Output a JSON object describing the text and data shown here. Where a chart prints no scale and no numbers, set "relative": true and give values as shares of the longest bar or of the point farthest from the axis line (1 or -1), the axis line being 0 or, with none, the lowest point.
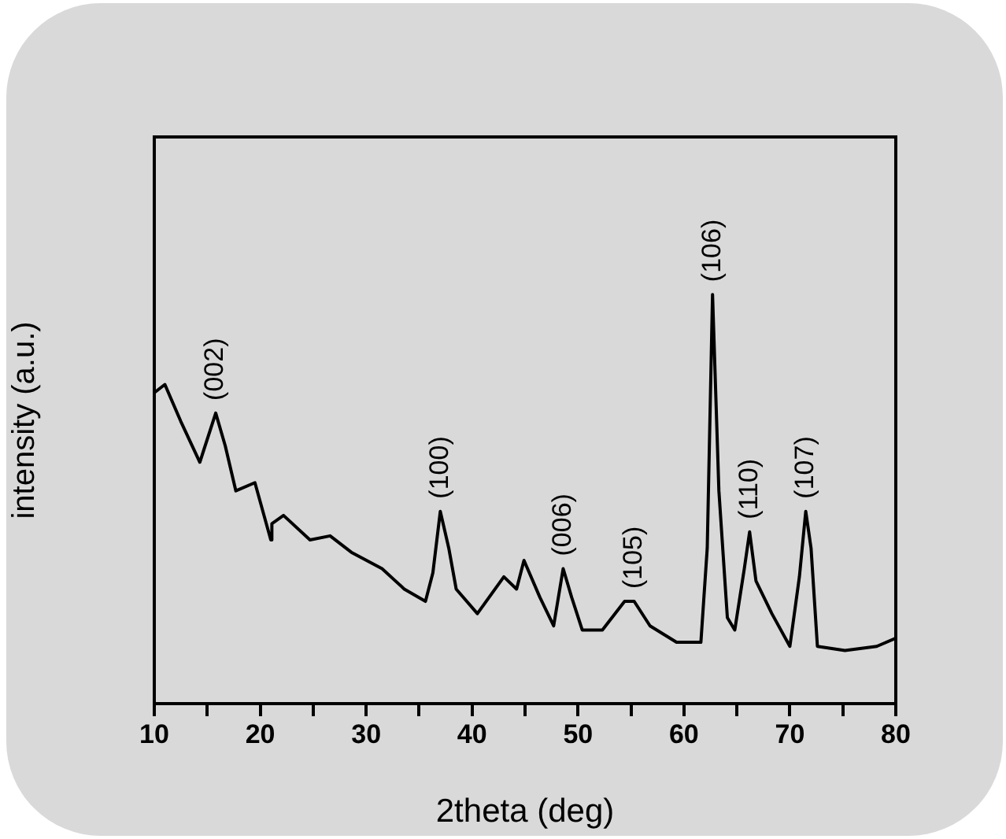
{
  "chart_data": {
    "type": "line",
    "relative": true,
    "xlabel": "2theta (deg)",
    "ylabel": "intensity (a.u.)",
    "color": "#000000",
    "marker": "none",
    "line_style": "solid",
    "grid": false,
    "legend": false,
    "tick_labels": "x",
    "xlim": [
      10,
      80
    ],
    "xticks": [
      10,
      {
        "value": 15,
        "label": null
      },
      20,
      {
        "value": 25,
        "label": null
      },
      30,
      {
        "value": 35,
        "label": null
      },
      40,
      {
        "value": 45,
        "label": null
      },
      50,
      {
        "value": 55,
        "label": null
      },
      60,
      {
        "value": 65,
        "label": null
      },
      70,
      {
        "value": 75,
        "label": null
      },
      80
    ],
    "x": [
      10,
      11.0,
      12.5,
      14.3,
      15.8,
      16.7,
      17.7,
      19.5,
      21.0,
      21.1,
      22.2,
      24.7,
      26.6,
      28.6,
      31.5,
      33.6,
      35.6,
      36.3,
      37.0,
      37.8,
      38.5,
      40.5,
      43.0,
      44.2,
      44.9,
      46.4,
      47.7,
      48.6,
      49.4,
      50.4,
      52.3,
      54.4,
      55.3,
      56.8,
      59.3,
      61.6,
      62.2,
      62.7,
      63.3,
      64.1,
      64.8,
      65.7,
      66.2,
      66.8,
      68.3,
      70.0,
      70.9,
      71.5,
      72.0,
      72.6,
      75.2,
      78.2,
      80
    ],
    "values": [
      0.76,
      0.78,
      0.69,
      0.59,
      0.71,
      0.63,
      0.52,
      0.54,
      0.4,
      0.44,
      0.46,
      0.4,
      0.41,
      0.37,
      0.33,
      0.28,
      0.25,
      0.32,
      0.47,
      0.38,
      0.28,
      0.22,
      0.31,
      0.28,
      0.35,
      0.26,
      0.19,
      0.33,
      0.26,
      0.18,
      0.18,
      0.25,
      0.25,
      0.19,
      0.15,
      0.15,
      0.38,
      1.0,
      0.52,
      0.21,
      0.18,
      0.33,
      0.42,
      0.3,
      0.22,
      0.14,
      0.31,
      0.47,
      0.38,
      0.14,
      0.13,
      0.14,
      0.16
    ],
    "annotations": [
      {
        "text": "(002)",
        "x": 15.8,
        "y": 0.71
      },
      {
        "text": "(100)",
        "x": 37.0,
        "y": 0.47
      },
      {
        "text": "(006)",
        "x": 48.6,
        "y": 0.33
      },
      {
        "text": "(105)",
        "x": 55.3,
        "y": 0.25
      },
      {
        "text": "(106)",
        "x": 62.7,
        "y": 1.0
      },
      {
        "text": "(110)",
        "x": 66.2,
        "y": 0.42
      },
      {
        "text": "(107)",
        "x": 71.5,
        "y": 0.47
      }
    ]
  }
}
